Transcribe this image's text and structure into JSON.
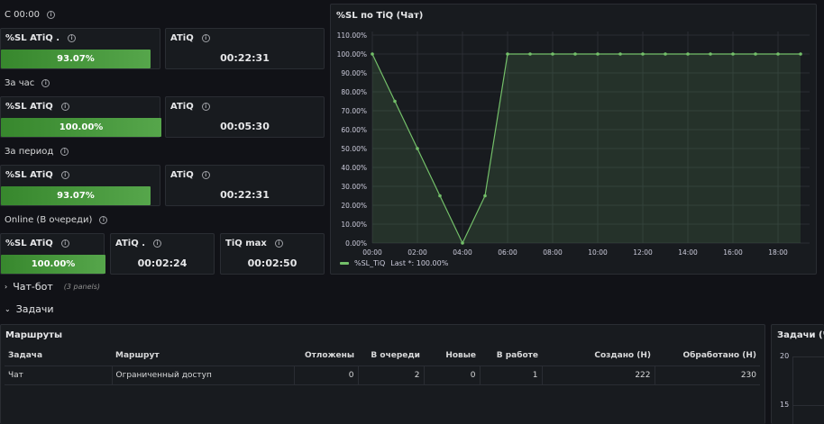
{
  "rows": {
    "since": "С 00:00",
    "hour": "За час",
    "period": "За период",
    "online": "Online (В очереди)"
  },
  "stats": {
    "since": {
      "sl_title": "%SL ATiQ .",
      "sl_value": "93.07%",
      "sl_fraction": 0.9307,
      "atiq_title": "ATiQ",
      "atiq_value": "00:22:31"
    },
    "hour": {
      "sl_title": "%SL ATiQ",
      "sl_value": "100.00%",
      "sl_fraction": 1.0,
      "atiq_title": "ATiQ",
      "atiq_value": "00:05:30"
    },
    "period": {
      "sl_title": "%SL ATiQ",
      "sl_value": "93.07%",
      "sl_fraction": 0.9307,
      "atiq_title": "ATiQ",
      "atiq_value": "00:22:31"
    },
    "online": {
      "sl_title": "%SL ATiQ",
      "sl_value": "100.00%",
      "sl_fraction": 1.0,
      "atiq_title": "ATiQ .",
      "atiq_value": "00:02:24",
      "tiq_title": "TiQ max",
      "tiq_value": "00:02:50"
    }
  },
  "chart_panel": {
    "title": "%SL по TiQ (Чат)",
    "legend_label": "%SL_TiQ",
    "legend_last": "Last *: 100.00%"
  },
  "chart_data": {
    "type": "area",
    "x": [
      "00:00",
      "01:00",
      "02:00",
      "03:00",
      "04:00",
      "05:00",
      "06:00",
      "07:00",
      "08:00",
      "09:00",
      "10:00",
      "11:00",
      "12:00",
      "13:00",
      "14:00",
      "15:00",
      "16:00",
      "17:00",
      "18:00",
      "19:00"
    ],
    "series": [
      {
        "name": "%SL_TiQ",
        "values": [
          100,
          75,
          50,
          25,
          0,
          25,
          100,
          100,
          100,
          100,
          100,
          100,
          100,
          100,
          100,
          100,
          100,
          100,
          100,
          100
        ]
      }
    ],
    "xticks": [
      "00:00",
      "02:00",
      "04:00",
      "06:00",
      "08:00",
      "10:00",
      "12:00",
      "14:00",
      "16:00",
      "18:00"
    ],
    "yticks": [
      "0.00%",
      "10.00%",
      "20.00%",
      "30.00%",
      "40.00%",
      "50.00%",
      "60.00%",
      "70.00%",
      "80.00%",
      "90.00%",
      "100.00%",
      "110.00%"
    ],
    "ylim": [
      0,
      110
    ],
    "color": "#73bf69",
    "grid": true
  },
  "sections": {
    "chatbot": "Чат-бот",
    "chatbot_sub": "(3 panels)",
    "tasks": "Задачи"
  },
  "routes_panel": {
    "title": "Маршруты",
    "columns": [
      "Задача",
      "Маршрут",
      "Отложены",
      "В очереди",
      "Новые",
      "В работе",
      "Создано (Н)",
      "Обработано (Н)"
    ],
    "rows": [
      [
        "Чат",
        "Ограниченный доступ",
        "0",
        "2",
        "0",
        "1",
        "222",
        "230"
      ]
    ]
  },
  "tasks_panel": {
    "title": "Задачи (Ча",
    "yticks": [
      "20",
      "15"
    ]
  },
  "colors": {
    "bg": "#111217",
    "panel": "#181b1f",
    "green": "#56a64b",
    "line": "#73bf69"
  }
}
